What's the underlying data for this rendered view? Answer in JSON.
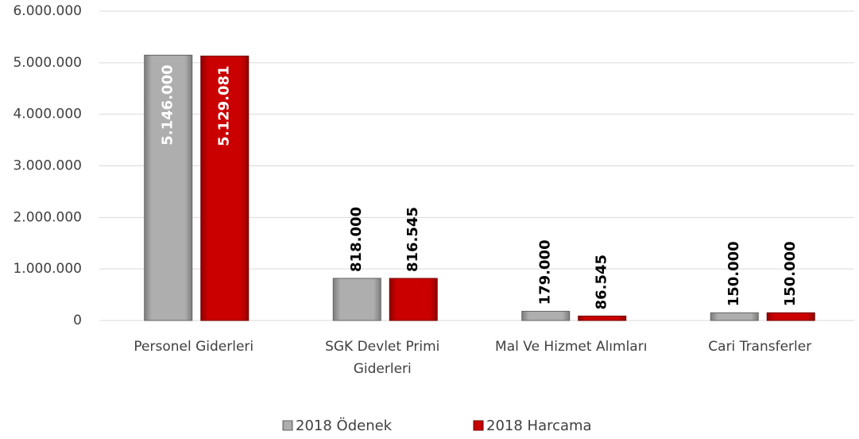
{
  "chart_data": {
    "type": "bar",
    "categories": [
      "Personel Giderleri",
      "SGK Devlet Primi Giderleri",
      "Mal Ve Hizmet Alımları",
      "Cari Transferler"
    ],
    "series": [
      {
        "name": "2018 Ödenek",
        "color": "#a6a6a6",
        "values": [
          5146000,
          818000,
          179000,
          150000
        ],
        "value_labels": [
          "5.146.000",
          "818.000",
          "179.000",
          "150.000"
        ]
      },
      {
        "name": "2018 Harcama",
        "color": "#c00000",
        "values": [
          5129081,
          816545,
          86545,
          150000
        ],
        "value_labels": [
          "5.129.081",
          "816.545",
          "86.545",
          "150.000"
        ]
      }
    ],
    "ylim": [
      0,
      6000000
    ],
    "yticks": [
      0,
      {
        "value": 1000000,
        "label": "1.000.000"
      },
      {
        "value": 2000000,
        "label": "2.000.000"
      },
      {
        "value": 3000000,
        "label": "3.000.000"
      },
      {
        "value": 4000000,
        "label": "4.000.000"
      },
      {
        "value": 5000000,
        "label": "5.000.000"
      },
      {
        "value": 6000000,
        "label": "6.000.000"
      }
    ],
    "grid": true
  }
}
